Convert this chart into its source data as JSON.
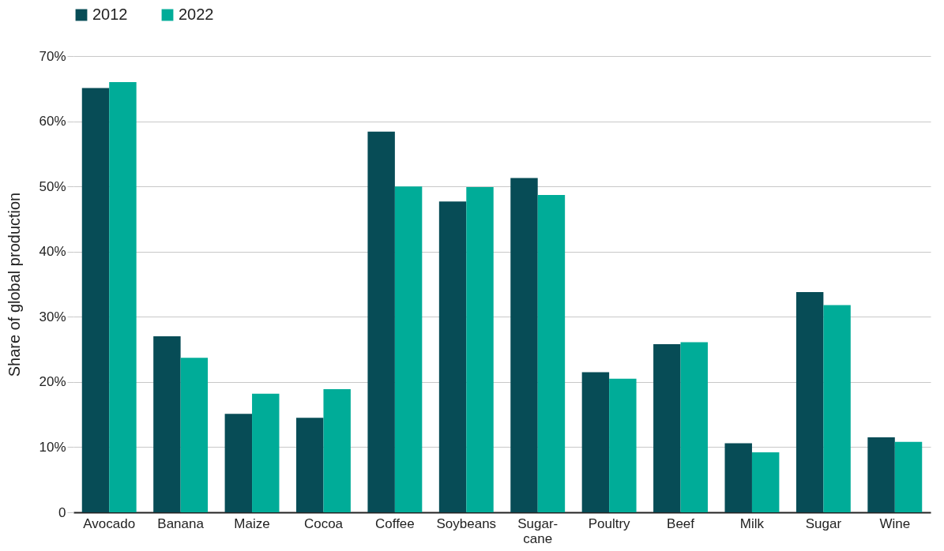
{
  "chart_data": {
    "type": "bar",
    "ylabel": "Share of global production",
    "categories": [
      "Avocado",
      "Banana",
      "Maize",
      "Cocoa",
      "Coffee",
      "Soybeans",
      "Sugar-cane",
      "Poultry",
      "Beef",
      "Milk",
      "Sugar",
      "Wine"
    ],
    "series": [
      {
        "name": "2012",
        "color": "#074c56",
        "values": [
          65.1,
          27.0,
          15.1,
          14.5,
          58.4,
          47.7,
          51.3,
          21.5,
          25.8,
          10.6,
          33.8,
          11.5
        ]
      },
      {
        "name": "2022",
        "color": "#00ac98",
        "values": [
          66.0,
          23.7,
          18.2,
          18.9,
          50.0,
          49.9,
          48.7,
          20.5,
          26.1,
          9.2,
          31.8,
          10.8
        ]
      }
    ],
    "ylim": [
      0,
      70
    ],
    "yticks": [
      0,
      {
        "value": 10,
        "label": "10%"
      },
      {
        "value": 20,
        "label": "20%"
      },
      {
        "value": 30,
        "label": "30%"
      },
      {
        "value": 40,
        "label": "40%"
      },
      {
        "value": 50,
        "label": "50%"
      },
      {
        "value": 60,
        "label": "60%"
      },
      {
        "value": 70,
        "label": "70%"
      }
    ],
    "grid": "y",
    "legend": "top left"
  }
}
